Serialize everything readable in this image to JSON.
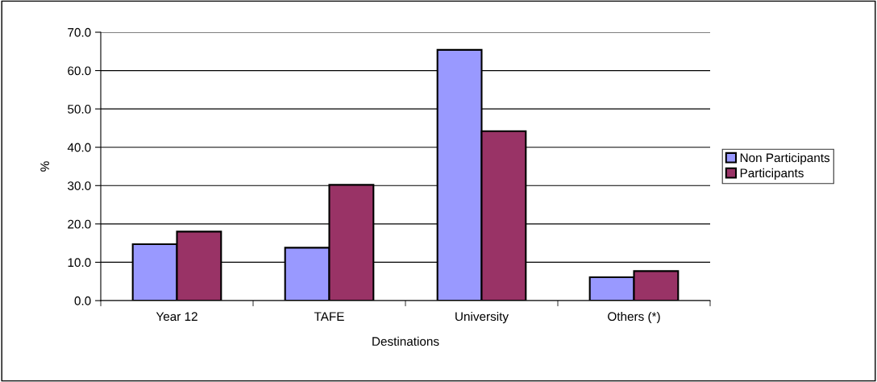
{
  "chart_data": {
    "type": "bar",
    "xlabel": "Destinations",
    "ylabel": "%",
    "categories": [
      "Year 12",
      "TAFE",
      "University",
      "Others (*)"
    ],
    "series": [
      {
        "name": "Non Participants",
        "color": "#9999ff",
        "values": [
          14.7,
          13.8,
          65.4,
          6.1
        ]
      },
      {
        "name": "Participants",
        "color": "#993366",
        "values": [
          18.0,
          30.2,
          44.2,
          7.7
        ]
      }
    ],
    "ylim": [
      0,
      70
    ],
    "yticks": [
      {
        "value": 0,
        "label": "0.0"
      },
      {
        "value": 10,
        "label": "10.0"
      },
      {
        "value": 20,
        "label": "20.0"
      },
      {
        "value": 30,
        "label": "30.0"
      },
      {
        "value": 40,
        "label": "40.0"
      },
      {
        "value": 50,
        "label": "50.0"
      },
      {
        "value": 60,
        "label": "60.0"
      },
      {
        "value": 70,
        "label": "70.0"
      }
    ],
    "grid": "y",
    "legend": "right"
  }
}
